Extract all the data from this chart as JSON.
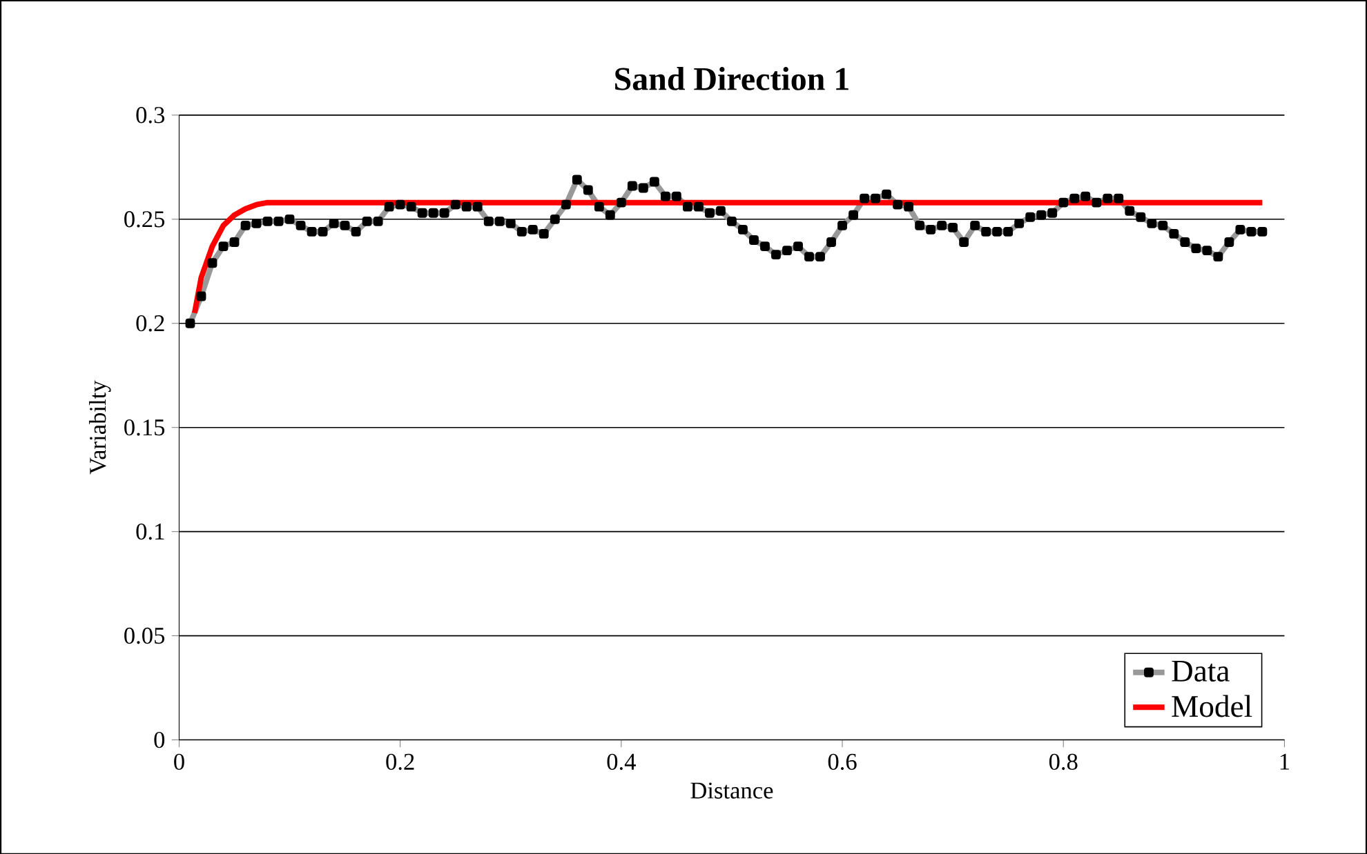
{
  "chart_data": {
    "type": "line",
    "title": "Sand Direction 1",
    "xlabel": "Distance",
    "ylabel": "Variabilty",
    "xlim": [
      0,
      1
    ],
    "xticks": [
      0,
      0.2,
      0.4,
      0.6,
      0.8,
      1
    ],
    "ylim": [
      0,
      0.3
    ],
    "yticks": [
      0,
      0.05,
      0.1,
      0.15,
      0.2,
      0.25,
      0.3
    ],
    "grid": "y",
    "legend": "bottom right",
    "series": [
      {
        "name": "Data",
        "color": "#999999",
        "marker": "square",
        "x": [
          0.01,
          0.02,
          0.03,
          0.04,
          0.05,
          0.06,
          0.07,
          0.08,
          0.09,
          0.1,
          0.11,
          0.12,
          0.13,
          0.14,
          0.15,
          0.16,
          0.17,
          0.18,
          0.19,
          0.2,
          0.21,
          0.22,
          0.23,
          0.24,
          0.25,
          0.26,
          0.27,
          0.28,
          0.29,
          0.3,
          0.31,
          0.32,
          0.33,
          0.34,
          0.35,
          0.36,
          0.37,
          0.38,
          0.39,
          0.4,
          0.41,
          0.42,
          0.43,
          0.44,
          0.45,
          0.46,
          0.47,
          0.48,
          0.49,
          0.5,
          0.51,
          0.52,
          0.53,
          0.54,
          0.55,
          0.56,
          0.57,
          0.58,
          0.59,
          0.6,
          0.61,
          0.62,
          0.63,
          0.64,
          0.65,
          0.66,
          0.67,
          0.68,
          0.69,
          0.7,
          0.71,
          0.72,
          0.73,
          0.74,
          0.75,
          0.76,
          0.77,
          0.78,
          0.79,
          0.8,
          0.81,
          0.82,
          0.83,
          0.84,
          0.85,
          0.86,
          0.87,
          0.88,
          0.89,
          0.9,
          0.91,
          0.92,
          0.93,
          0.94,
          0.95,
          0.96,
          0.97,
          0.98
        ],
        "values": [
          0.2,
          0.213,
          0.229,
          0.237,
          0.239,
          0.247,
          0.248,
          0.249,
          0.249,
          0.25,
          0.247,
          0.244,
          0.244,
          0.248,
          0.247,
          0.244,
          0.249,
          0.249,
          0.256,
          0.257,
          0.256,
          0.253,
          0.253,
          0.253,
          0.257,
          0.256,
          0.256,
          0.249,
          0.249,
          0.248,
          0.244,
          0.245,
          0.243,
          0.25,
          0.257,
          0.269,
          0.264,
          0.256,
          0.252,
          0.258,
          0.266,
          0.265,
          0.268,
          0.261,
          0.261,
          0.256,
          0.256,
          0.253,
          0.254,
          0.249,
          0.245,
          0.24,
          0.237,
          0.233,
          0.235,
          0.237,
          0.232,
          0.232,
          0.239,
          0.247,
          0.252,
          0.26,
          0.26,
          0.262,
          0.257,
          0.256,
          0.247,
          0.245,
          0.247,
          0.246,
          0.239,
          0.247,
          0.244,
          0.244,
          0.244,
          0.248,
          0.251,
          0.252,
          0.253,
          0.258,
          0.26,
          0.261,
          0.258,
          0.26,
          0.26,
          0.254,
          0.251,
          0.248,
          0.247,
          0.243,
          0.239,
          0.236,
          0.235,
          0.232,
          0.239,
          0.245,
          0.244,
          0.244
        ]
      },
      {
        "name": "Model",
        "color": "#ff0000",
        "marker": "none",
        "x": [
          0.014,
          0.02,
          0.03,
          0.04,
          0.05,
          0.06,
          0.07,
          0.08,
          0.09,
          0.98
        ],
        "values": [
          0.205,
          0.222,
          0.237,
          0.247,
          0.252,
          0.255,
          0.257,
          0.258,
          0.258,
          0.258
        ]
      }
    ]
  }
}
